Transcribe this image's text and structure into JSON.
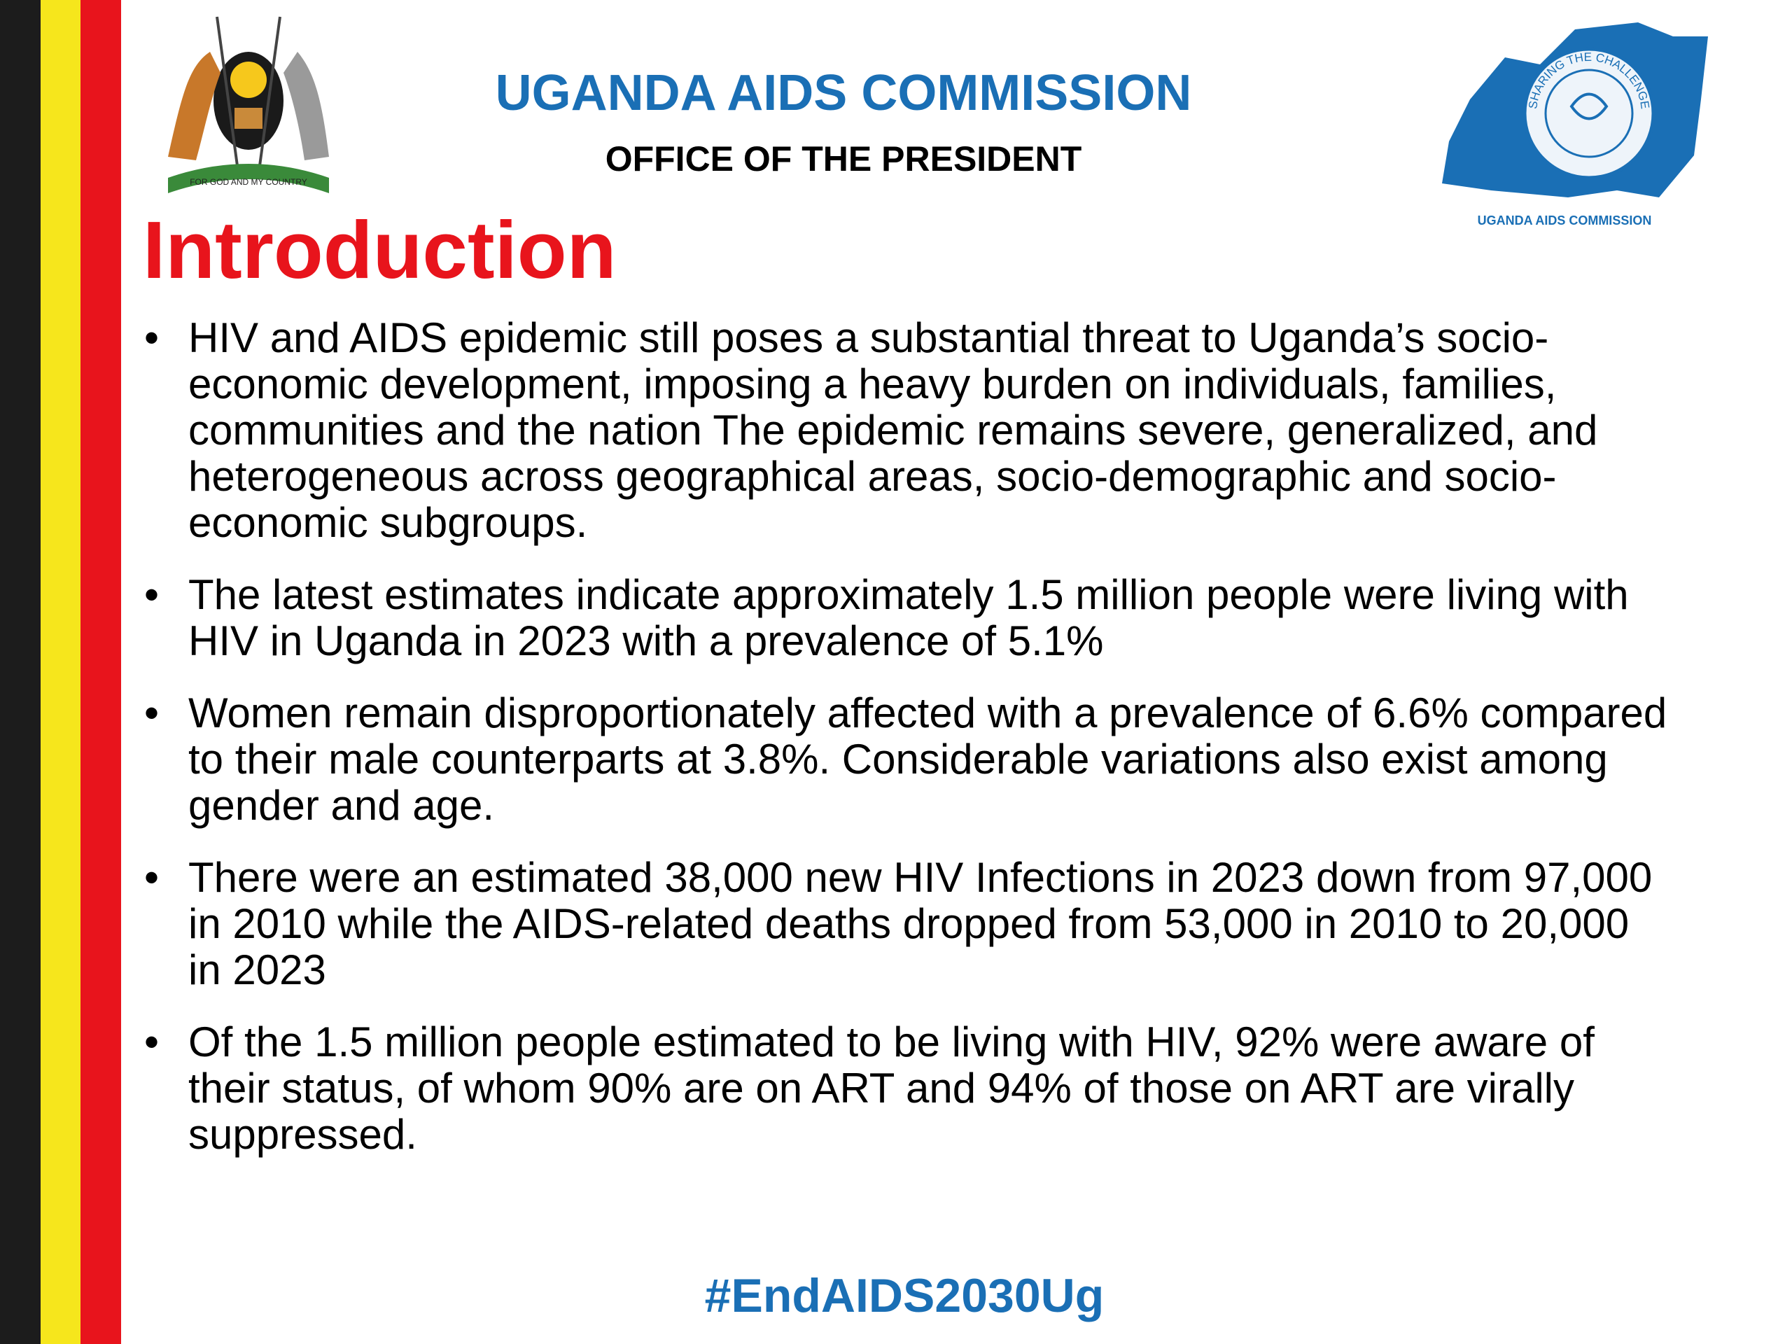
{
  "header": {
    "title": "UGANDA AIDS COMMISSION",
    "subtitle": "OFFICE OF THE PRESIDENT"
  },
  "logos": {
    "coat_of_arms_motto": "FOR GOD AND MY COUNTRY",
    "seal_text": "SHARING THE CHALLENGE",
    "caption": "UGANDA AIDS COMMISSION"
  },
  "title": "Introduction",
  "bullets": [
    "HIV and AIDS epidemic still poses a substantial threat to Uganda’s socio-economic development, imposing a heavy burden on individuals, families, communities and the nation The epidemic remains severe, generalized, and heterogeneous across geographical areas, socio-demographic and socio-economic subgroups.",
    "The latest estimates indicate approximately 1.5 million people were living with HIV in Uganda in 2023 with a prevalence of 5.1%",
    "Women remain disproportionately affected with a prevalence of 6.6% compared to their male counterparts at 3.8%. Considerable variations also exist among gender and age.",
    "There were an estimated 38,000 new HIV Infections in 2023 down from 97,000 in 2010 while the AIDS-related deaths dropped from 53,000 in 2010 to 20,000 in 2023",
    "Of the 1.5 million people estimated to be living with HIV, 92% were aware of their status, of whom 90% are on ART and 94% of those on ART are virally suppressed."
  ],
  "footer": {
    "hashtag": "#EndAIDS2030Ug"
  }
}
